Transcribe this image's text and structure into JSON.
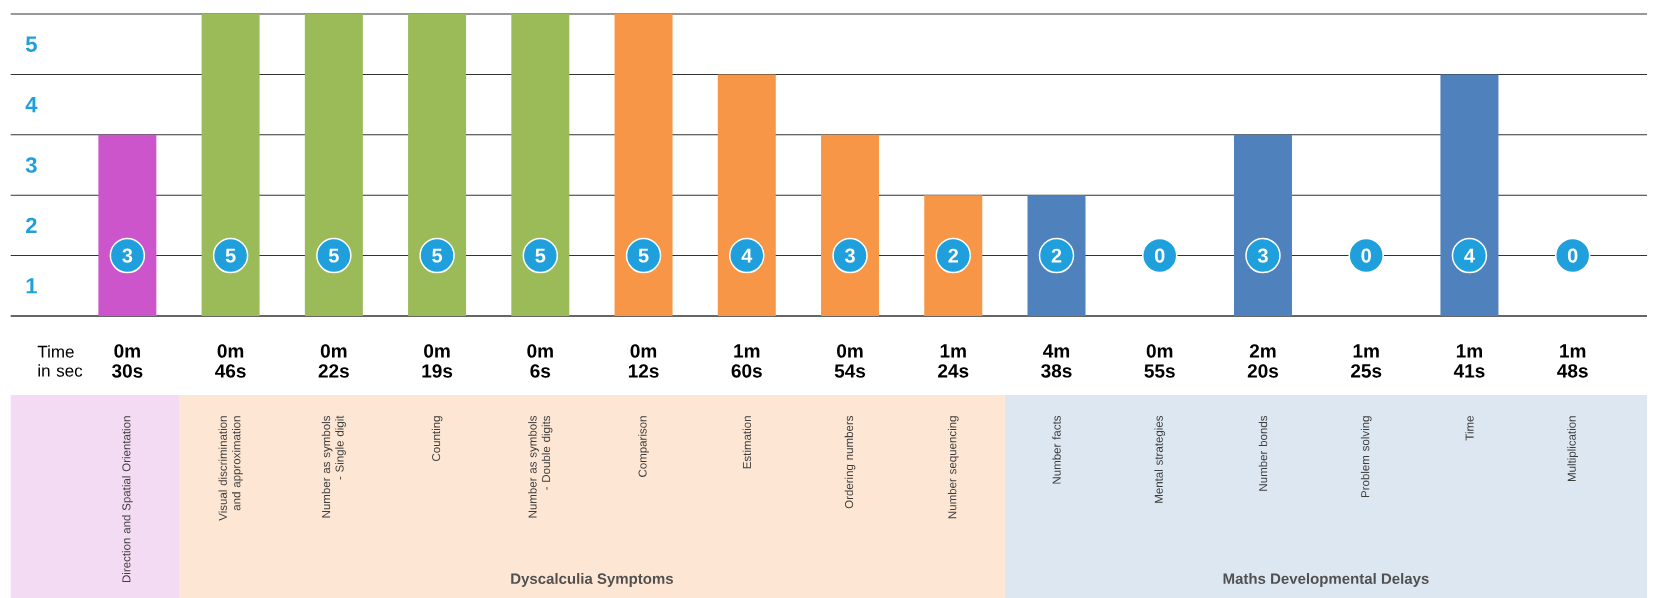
{
  "chart_data": {
    "type": "bar",
    "categories": [
      "Direction and Spatial Orientation",
      "Visual discrimination and approximation",
      "Number as symbols - Single digit",
      "Counting",
      "Number as symbols - Double digits",
      "Comparison",
      "Estimation",
      "Ordering numbers",
      "Number sequencing",
      "Number facts",
      "Mental strategies",
      "Number bonds",
      "Problem solving",
      "Time",
      "Multiplication"
    ],
    "values": [
      3,
      5,
      5,
      5,
      5,
      5,
      4,
      3,
      2,
      2,
      0,
      3,
      0,
      4,
      0
    ],
    "colors": [
      "#cc55cc",
      "#9bbb59",
      "#9bbb59",
      "#9bbb59",
      "#9bbb59",
      "#f79646",
      "#f79646",
      "#f79646",
      "#f79646",
      "#4f81bd",
      "#4f81bd",
      "#4f81bd",
      "#4f81bd",
      "#4f81bd",
      "#4f81bd"
    ],
    "data_labels": true,
    "grid": "y",
    "annotations": [
      "Time in sec",
      "0m 30s",
      "0m 46s",
      "0m 22s",
      "0m 19s",
      "0m 6s",
      "0m 12s",
      "1m 60s",
      "0m 54s",
      "1m 24s",
      "4m 38s",
      "0m 55s",
      "2m 20s",
      "1m 25s",
      "1m 41s",
      "1m 48s",
      "Dyscalculia Symptoms",
      "Maths Developmental Delays",
      "1",
      "2",
      "3",
      "4",
      "5"
    ]
  }
}
